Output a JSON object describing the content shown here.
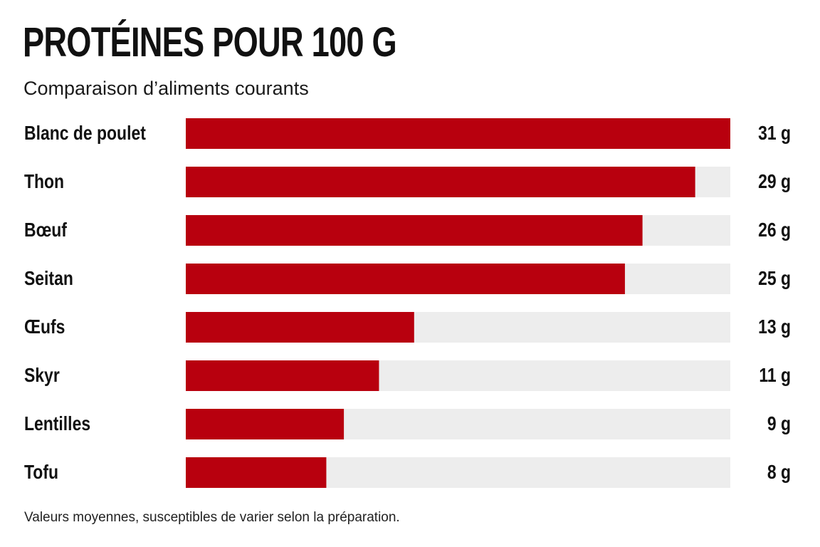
{
  "chart_data": {
    "type": "bar",
    "orientation": "horizontal",
    "title": "PROTÉINES POUR 100 G",
    "subtitle": "Comparaison d’aliments courants",
    "categories": [
      "Blanc de poulet",
      "Thon",
      "Bœuf",
      "Seitan",
      "Œufs",
      "Skyr",
      "Lentilles",
      "Tofu"
    ],
    "values": [
      31,
      29,
      26,
      25,
      13,
      11,
      9,
      8
    ],
    "value_labels": [
      "31 g",
      "29 g",
      "26 g",
      "25 g",
      "13 g",
      "11 g",
      "9 g",
      "8 g"
    ],
    "unit": "g",
    "xlim": [
      0,
      31
    ],
    "grid": false,
    "legend": "none",
    "colors": {
      "bar": "#b8000e",
      "track": "#ededed",
      "text": "#111111"
    },
    "footnote": "Valeurs moyennes, susceptibles de varier selon la préparation."
  }
}
